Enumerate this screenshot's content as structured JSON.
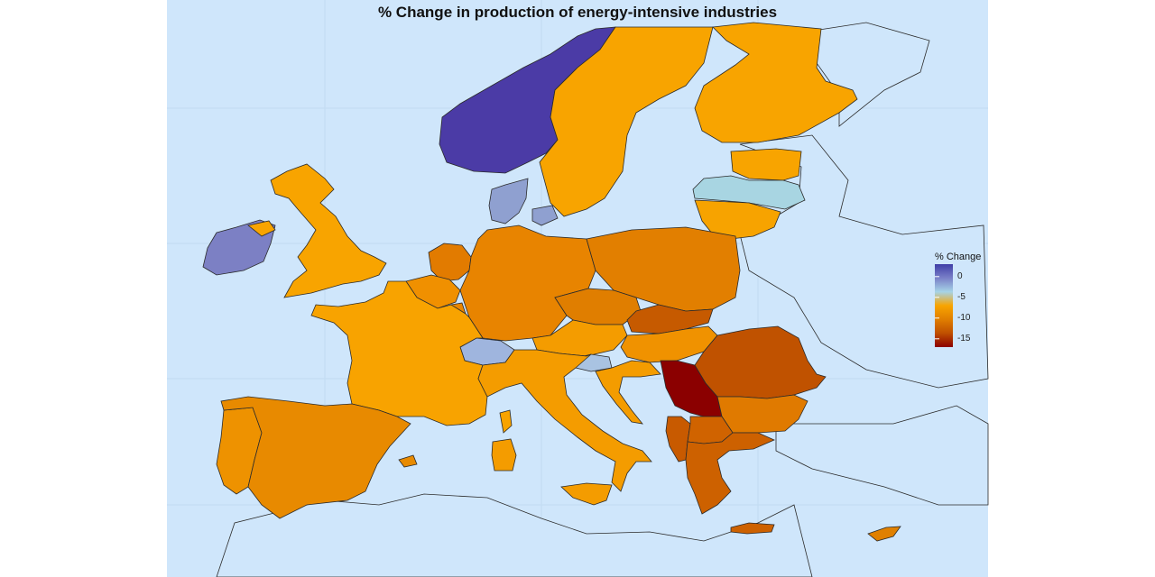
{
  "map": {
    "title": "% Change in production of energy-intensive industries",
    "colors": {
      "sea": "#cfe6fb",
      "non_eu_land": "#cfe6fb",
      "border": "#2b2b2b"
    }
  },
  "legend": {
    "title": "% Change",
    "ticks": [
      {
        "value": 0,
        "label": "0"
      },
      {
        "value": -5,
        "label": "-5"
      },
      {
        "value": -10,
        "label": "-10"
      },
      {
        "value": -15,
        "label": "-15"
      }
    ],
    "range": [
      -17,
      3
    ],
    "gradient": [
      "#3f3ea7",
      "#7a80c8",
      "#a6d3e6",
      "#f8a400",
      "#e07e00",
      "#bf4f00",
      "#8b0000"
    ]
  },
  "regions": [
    {
      "id": "norway",
      "color": "#4b3ba6"
    },
    {
      "id": "sweden",
      "color": "#f8a400"
    },
    {
      "id": "finland",
      "color": "#f8a400"
    },
    {
      "id": "estonia",
      "color": "#f8a400"
    },
    {
      "id": "latvia",
      "color": "#a8d5e2"
    },
    {
      "id": "lithuania",
      "color": "#f7a300"
    },
    {
      "id": "denmark",
      "color": "#8fa0d0"
    },
    {
      "id": "ireland",
      "color": "#7c80c4"
    },
    {
      "id": "united-kingdom",
      "color": "#f8a400"
    },
    {
      "id": "netherlands",
      "color": "#e27b00"
    },
    {
      "id": "belgium",
      "color": "#f09000"
    },
    {
      "id": "luxembourg",
      "color": "#e98600"
    },
    {
      "id": "germany",
      "color": "#e88400"
    },
    {
      "id": "poland",
      "color": "#e27f00"
    },
    {
      "id": "czechia",
      "color": "#e07e00"
    },
    {
      "id": "slovakia",
      "color": "#c65a00"
    },
    {
      "id": "austria",
      "color": "#f49c00"
    },
    {
      "id": "switzerland",
      "color": "#9fb5de"
    },
    {
      "id": "slovenia",
      "color": "#a9c3e2"
    },
    {
      "id": "hungary",
      "color": "#f09200"
    },
    {
      "id": "croatia",
      "color": "#f49c00"
    },
    {
      "id": "serbia",
      "color": "#8b0000"
    },
    {
      "id": "romania",
      "color": "#c05200"
    },
    {
      "id": "bulgaria",
      "color": "#e07a00"
    },
    {
      "id": "north-macedonia",
      "color": "#d06300"
    },
    {
      "id": "montenegro-albania",
      "color": "#c85a00"
    },
    {
      "id": "greece",
      "color": "#cd6100"
    },
    {
      "id": "france",
      "color": "#f8a300"
    },
    {
      "id": "spain",
      "color": "#e88a00"
    },
    {
      "id": "portugal",
      "color": "#ee9200"
    },
    {
      "id": "italy",
      "color": "#f49c00"
    },
    {
      "id": "sardinia",
      "color": "#f49c00"
    },
    {
      "id": "corsica",
      "color": "#f8a300"
    },
    {
      "id": "sicily",
      "color": "#f49c00"
    },
    {
      "id": "cyprus",
      "color": "#e08000"
    },
    {
      "id": "crete",
      "color": "#cd6100"
    }
  ]
}
